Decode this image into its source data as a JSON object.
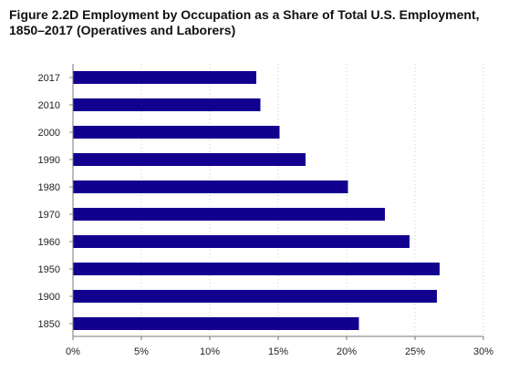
{
  "title": "Figure 2.2D Employment by Occupation as a Share of Total U.S. Employment, 1850–2017 (Operatives and Laborers)",
  "chart_data": {
    "type": "bar",
    "orientation": "horizontal",
    "title": "Figure 2.2D Employment by Occupation as a Share of Total U.S. Employment, 1850–2017 (Operatives and Laborers)",
    "categories": [
      "2017",
      "2010",
      "2000",
      "1990",
      "1980",
      "1970",
      "1960",
      "1950",
      "1900",
      "1850"
    ],
    "values": [
      13.4,
      13.7,
      15.1,
      17.0,
      20.1,
      22.8,
      24.6,
      26.8,
      26.6,
      20.9
    ],
    "xlabel": "",
    "ylabel": "",
    "xlim": [
      0,
      30
    ],
    "x_ticks": [
      0,
      5,
      10,
      15,
      20,
      25,
      30
    ],
    "x_tick_labels": [
      "0%",
      "5%",
      "10%",
      "15%",
      "20%",
      "25%",
      "30%"
    ],
    "bar_color": "#12008f",
    "grid": "vertical dotted",
    "legend": "none"
  }
}
